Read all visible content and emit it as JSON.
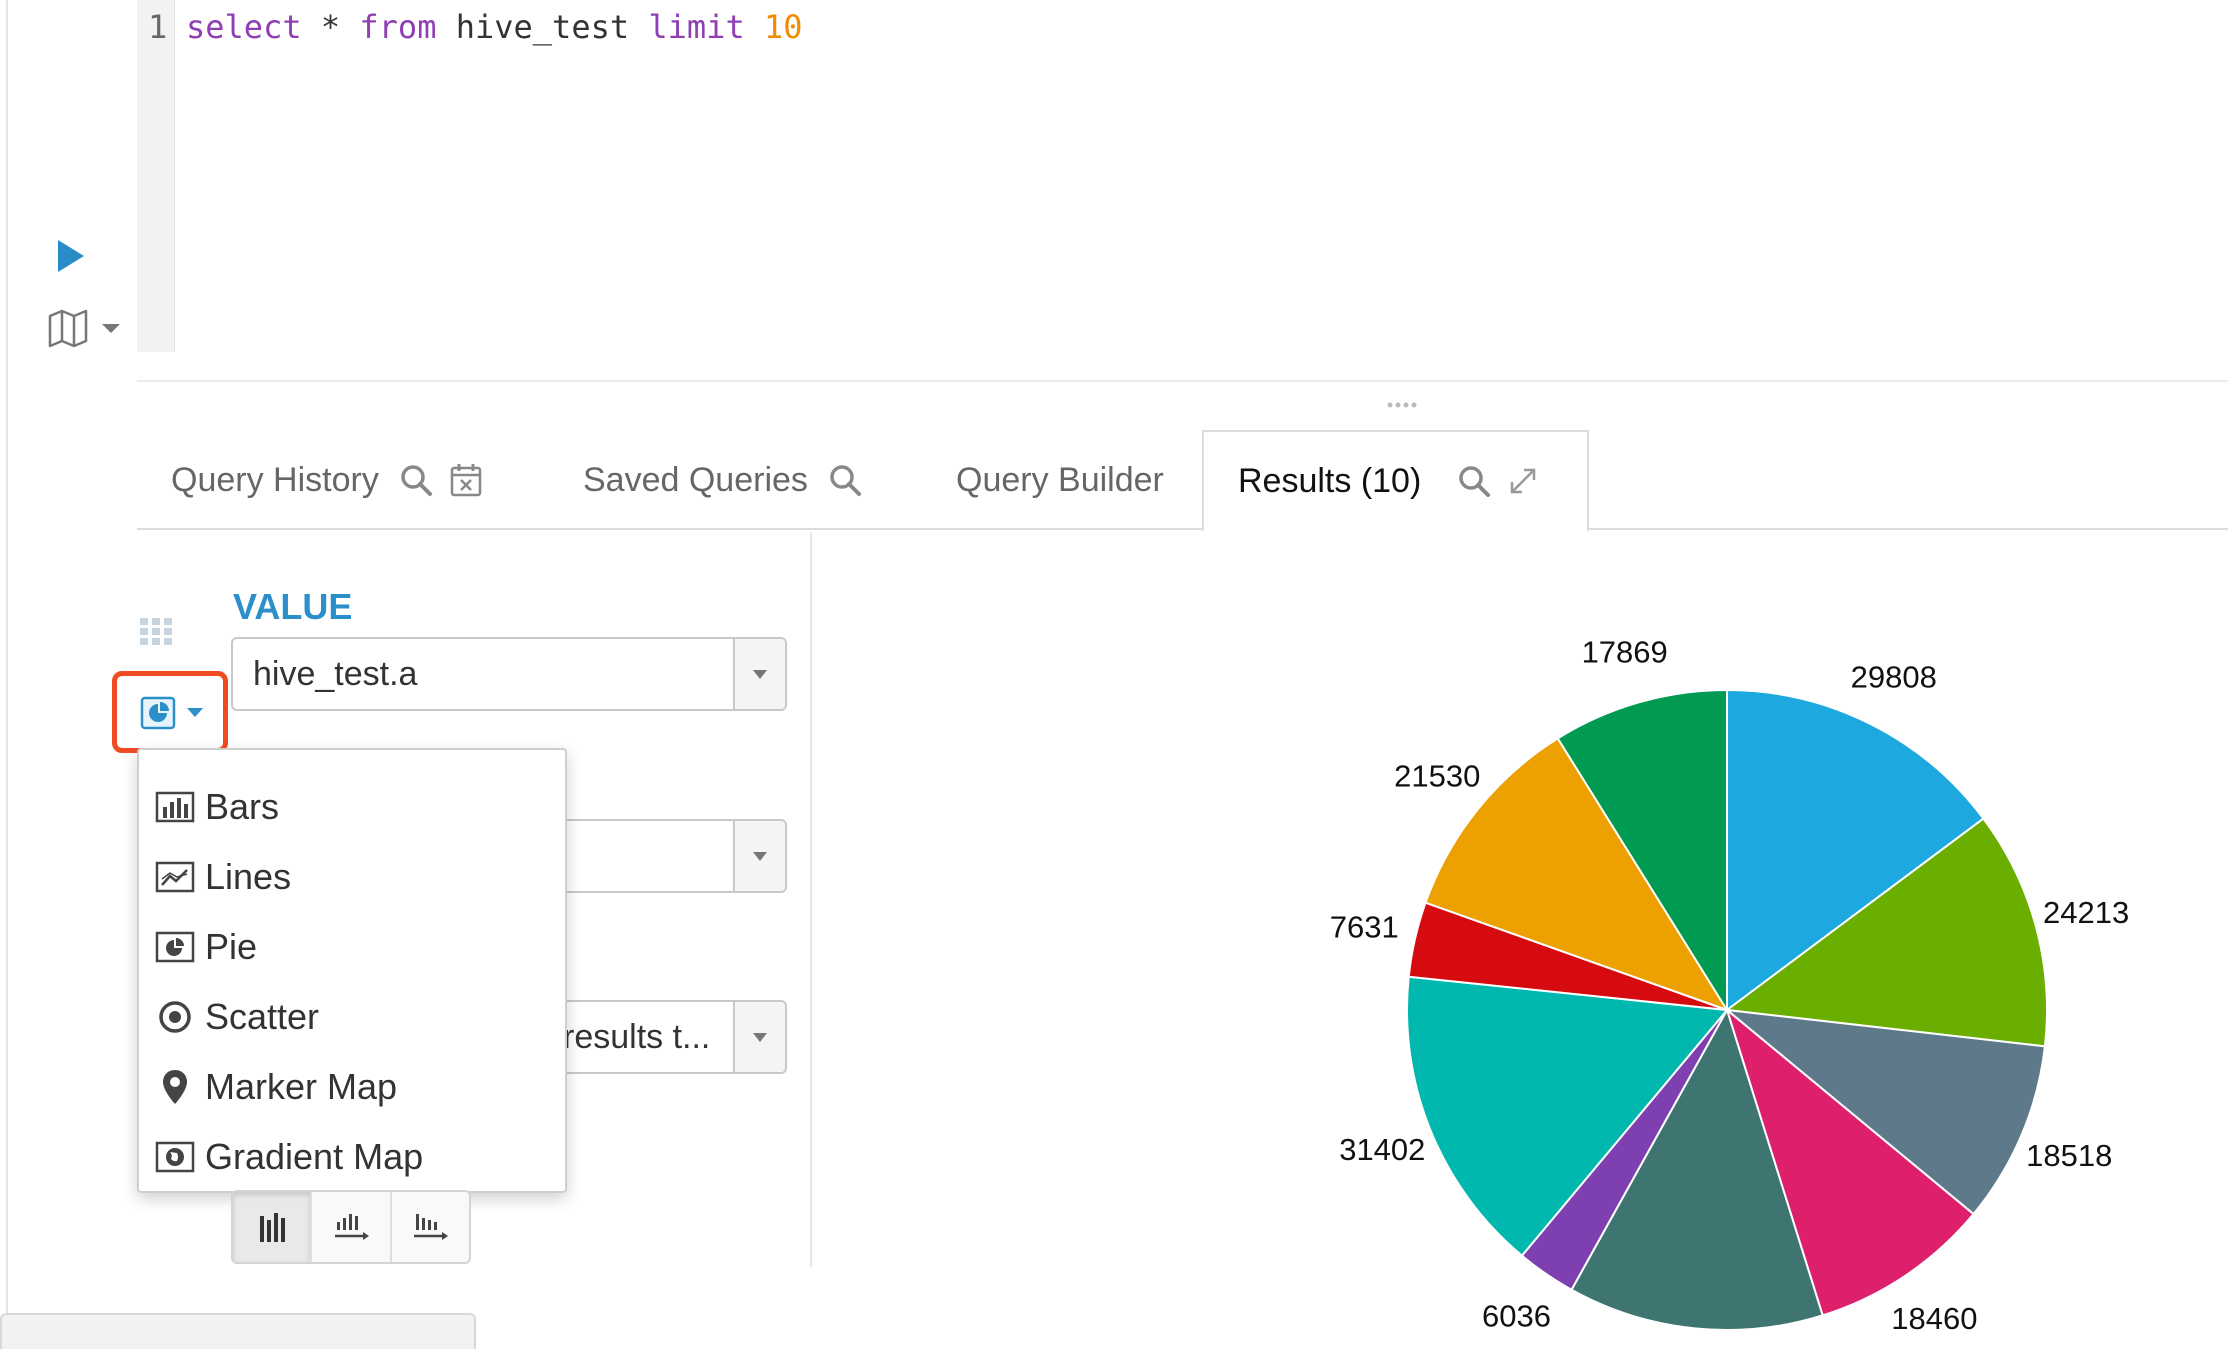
{
  "editor": {
    "line_number": "1",
    "tokens": [
      {
        "text": "select",
        "kind": "keyword"
      },
      {
        "text": " * ",
        "kind": "plain"
      },
      {
        "text": "from",
        "kind": "keyword"
      },
      {
        "text": " hive_test ",
        "kind": "plain"
      },
      {
        "text": "limit",
        "kind": "keyword"
      },
      {
        "text": " ",
        "kind": "plain"
      },
      {
        "text": "10",
        "kind": "number"
      }
    ]
  },
  "toolbar": {
    "run_icon": "play-icon",
    "map_icon": "map-icon"
  },
  "tabs": [
    {
      "label": "Query History",
      "icons": [
        "search-icon",
        "calendar-icon"
      ],
      "active": false
    },
    {
      "label": "Saved Queries",
      "icons": [
        "search-icon"
      ],
      "active": false
    },
    {
      "label": "Query Builder",
      "icons": [],
      "active": false
    },
    {
      "label": "Results (10)",
      "icons": [
        "search-icon",
        "expand-icon"
      ],
      "active": true
    }
  ],
  "chart_settings": {
    "value_label": "VALUE",
    "value_select": "hive_test.a",
    "second_select": "",
    "third_select": "results t..."
  },
  "chart_type_menu": {
    "items": [
      {
        "label": "Bars",
        "icon": "bars-chart-icon"
      },
      {
        "label": "Lines",
        "icon": "lines-chart-icon"
      },
      {
        "label": "Pie",
        "icon": "pie-chart-icon"
      },
      {
        "label": "Scatter",
        "icon": "scatter-icon"
      },
      {
        "label": "Marker Map",
        "icon": "map-marker-icon"
      },
      {
        "label": "Gradient Map",
        "icon": "globe-icon"
      }
    ]
  },
  "chart_data": {
    "type": "pie",
    "values": [
      29808,
      24213,
      18518,
      18460,
      26000,
      6036,
      31402,
      7631,
      21530,
      17869
    ],
    "labels": [
      "29808",
      "24213",
      "18518",
      "18460",
      "",
      "6036",
      "31402",
      "7631",
      "21530",
      "17869"
    ],
    "colors": [
      "#1da8e0",
      "#6aaf00",
      "#5e7a8a",
      "#de1f6c",
      "#3f7571",
      "#7e3fb0",
      "#00b8ad",
      "#d60b0f",
      "#eca100",
      "#009a52"
    ]
  }
}
